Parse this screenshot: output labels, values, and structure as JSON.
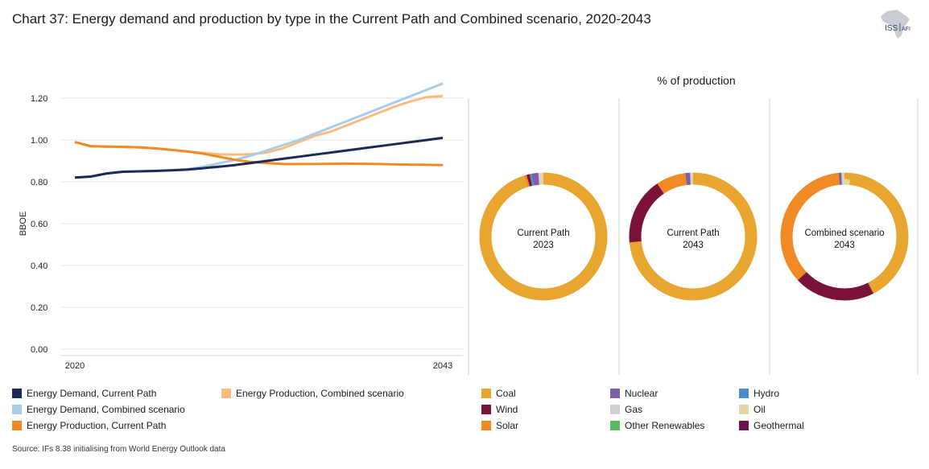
{
  "title": "Chart 37: Energy demand and production by type in the Current Path and Combined scenario, 2020-2043",
  "logo": {
    "text_main": "ISS",
    "text_sub": "AFI"
  },
  "source": "Source: IFs 8.38 initialising from World Energy Outlook data",
  "pie_section_title": "% of production",
  "chart_data": [
    {
      "type": "line",
      "title": "",
      "xlabel": "",
      "ylabel": "BBOE",
      "x": [
        2020,
        2021,
        2022,
        2023,
        2024,
        2025,
        2026,
        2027,
        2028,
        2029,
        2030,
        2031,
        2032,
        2033,
        2034,
        2035,
        2036,
        2037,
        2038,
        2039,
        2040,
        2041,
        2042,
        2043
      ],
      "xticks": [
        "2020",
        "2043"
      ],
      "yticks": [
        "0.00",
        "0.20",
        "0.40",
        "0.60",
        "0.80",
        "1.00",
        "1.20"
      ],
      "ylim": [
        0,
        1.3
      ],
      "series": [
        {
          "name": "Energy Demand, Current Path",
          "color": "#1c2a55",
          "values": [
            0.82,
            0.825,
            0.84,
            0.848,
            0.85,
            0.852,
            0.855,
            0.858,
            0.865,
            0.872,
            0.88,
            0.89,
            0.9,
            0.91,
            0.92,
            0.93,
            0.94,
            0.95,
            0.96,
            0.97,
            0.98,
            0.99,
            1.0,
            1.01
          ]
        },
        {
          "name": "Energy Demand, Combined scenario",
          "color": "#a8cdea",
          "values": [
            0.82,
            0.825,
            0.84,
            0.848,
            0.85,
            0.852,
            0.855,
            0.86,
            0.872,
            0.888,
            0.905,
            0.925,
            0.95,
            0.975,
            1.0,
            1.03,
            1.06,
            1.09,
            1.12,
            1.15,
            1.18,
            1.21,
            1.24,
            1.27
          ]
        },
        {
          "name": "Energy Production, Current Path",
          "color": "#f08a24",
          "values": [
            0.99,
            0.97,
            0.968,
            0.967,
            0.965,
            0.96,
            0.953,
            0.945,
            0.935,
            0.92,
            0.905,
            0.895,
            0.89,
            0.885,
            0.885,
            0.885,
            0.886,
            0.887,
            0.886,
            0.885,
            0.883,
            0.882,
            0.881,
            0.88
          ]
        },
        {
          "name": "Energy Production, Combined scenario",
          "color": "#f9bc7e",
          "values": [
            0.99,
            0.97,
            0.968,
            0.967,
            0.965,
            0.96,
            0.953,
            0.945,
            0.938,
            0.932,
            0.93,
            0.932,
            0.94,
            0.96,
            0.99,
            1.02,
            1.04,
            1.07,
            1.1,
            1.13,
            1.16,
            1.185,
            1.205,
            1.21
          ]
        }
      ]
    },
    {
      "type": "pie",
      "title": "% of production",
      "pies": [
        {
          "label_line1": "Current Path",
          "label_line2": "2023",
          "slices": [
            {
              "name": "Coal",
              "value": 95.0,
              "color": "#e8a530"
            },
            {
              "name": "Solar",
              "value": 0.7,
              "color": "#f08a24"
            },
            {
              "name": "Wind",
              "value": 0.8,
              "color": "#7b1239"
            },
            {
              "name": "Hydro",
              "value": 0.5,
              "color": "#4a8ccc"
            },
            {
              "name": "Nuclear",
              "value": 1.7,
              "color": "#7c5fa8"
            },
            {
              "name": "Gas",
              "value": 0.5,
              "color": "#d0d0d0"
            },
            {
              "name": "Oil",
              "value": 0.8,
              "color": "#e8d3a4"
            }
          ]
        },
        {
          "label_line1": "Current Path",
          "label_line2": "2043",
          "slices": [
            {
              "name": "Coal",
              "value": 73.5,
              "color": "#e8a530"
            },
            {
              "name": "Wind",
              "value": 17.0,
              "color": "#7b1239"
            },
            {
              "name": "Solar",
              "value": 7.5,
              "color": "#f08a24"
            },
            {
              "name": "Nuclear",
              "value": 1.2,
              "color": "#7c5fa8"
            },
            {
              "name": "Gas",
              "value": 0.3,
              "color": "#d0d0d0"
            },
            {
              "name": "Oil",
              "value": 0.5,
              "color": "#e8d3a4"
            }
          ]
        },
        {
          "label_line1": "Combined scenario",
          "label_line2": "2043",
          "slices": [
            {
              "name": "Coal",
              "value": 42.5,
              "color": "#e8a530"
            },
            {
              "name": "Wind",
              "value": 20.5,
              "color": "#7b1239"
            },
            {
              "name": "Solar",
              "value": 35.5,
              "color": "#f08a24"
            },
            {
              "name": "Nuclear",
              "value": 0.7,
              "color": "#7c5fa8"
            },
            {
              "name": "Gas",
              "value": 0.3,
              "color": "#d0d0d0"
            },
            {
              "name": "Oil",
              "value": 0.5,
              "color": "#e8d3a4"
            }
          ]
        }
      ]
    }
  ],
  "line_legend": [
    {
      "label": "Energy Demand, Current Path",
      "color": "#1c2a55"
    },
    {
      "label": "Energy Demand, Combined scenario",
      "color": "#a8cdea"
    },
    {
      "label": "Energy Production, Current Path",
      "color": "#f08a24"
    },
    {
      "label": "Energy Production, Combined scenario",
      "color": "#f9bc7e"
    }
  ],
  "pie_legend": [
    {
      "label": "Coal",
      "color": "#e8a530"
    },
    {
      "label": "Wind",
      "color": "#7b1239"
    },
    {
      "label": "Solar",
      "color": "#f08a24"
    },
    {
      "label": "Nuclear",
      "color": "#7c5fa8"
    },
    {
      "label": "Gas",
      "color": "#d0d0d0"
    },
    {
      "label": "Other Renewables",
      "color": "#5cb85c"
    },
    {
      "label": "Hydro",
      "color": "#4a8ccc"
    },
    {
      "label": "Oil",
      "color": "#e8d3a4"
    },
    {
      "label": "Geothermal",
      "color": "#6b1550"
    }
  ]
}
